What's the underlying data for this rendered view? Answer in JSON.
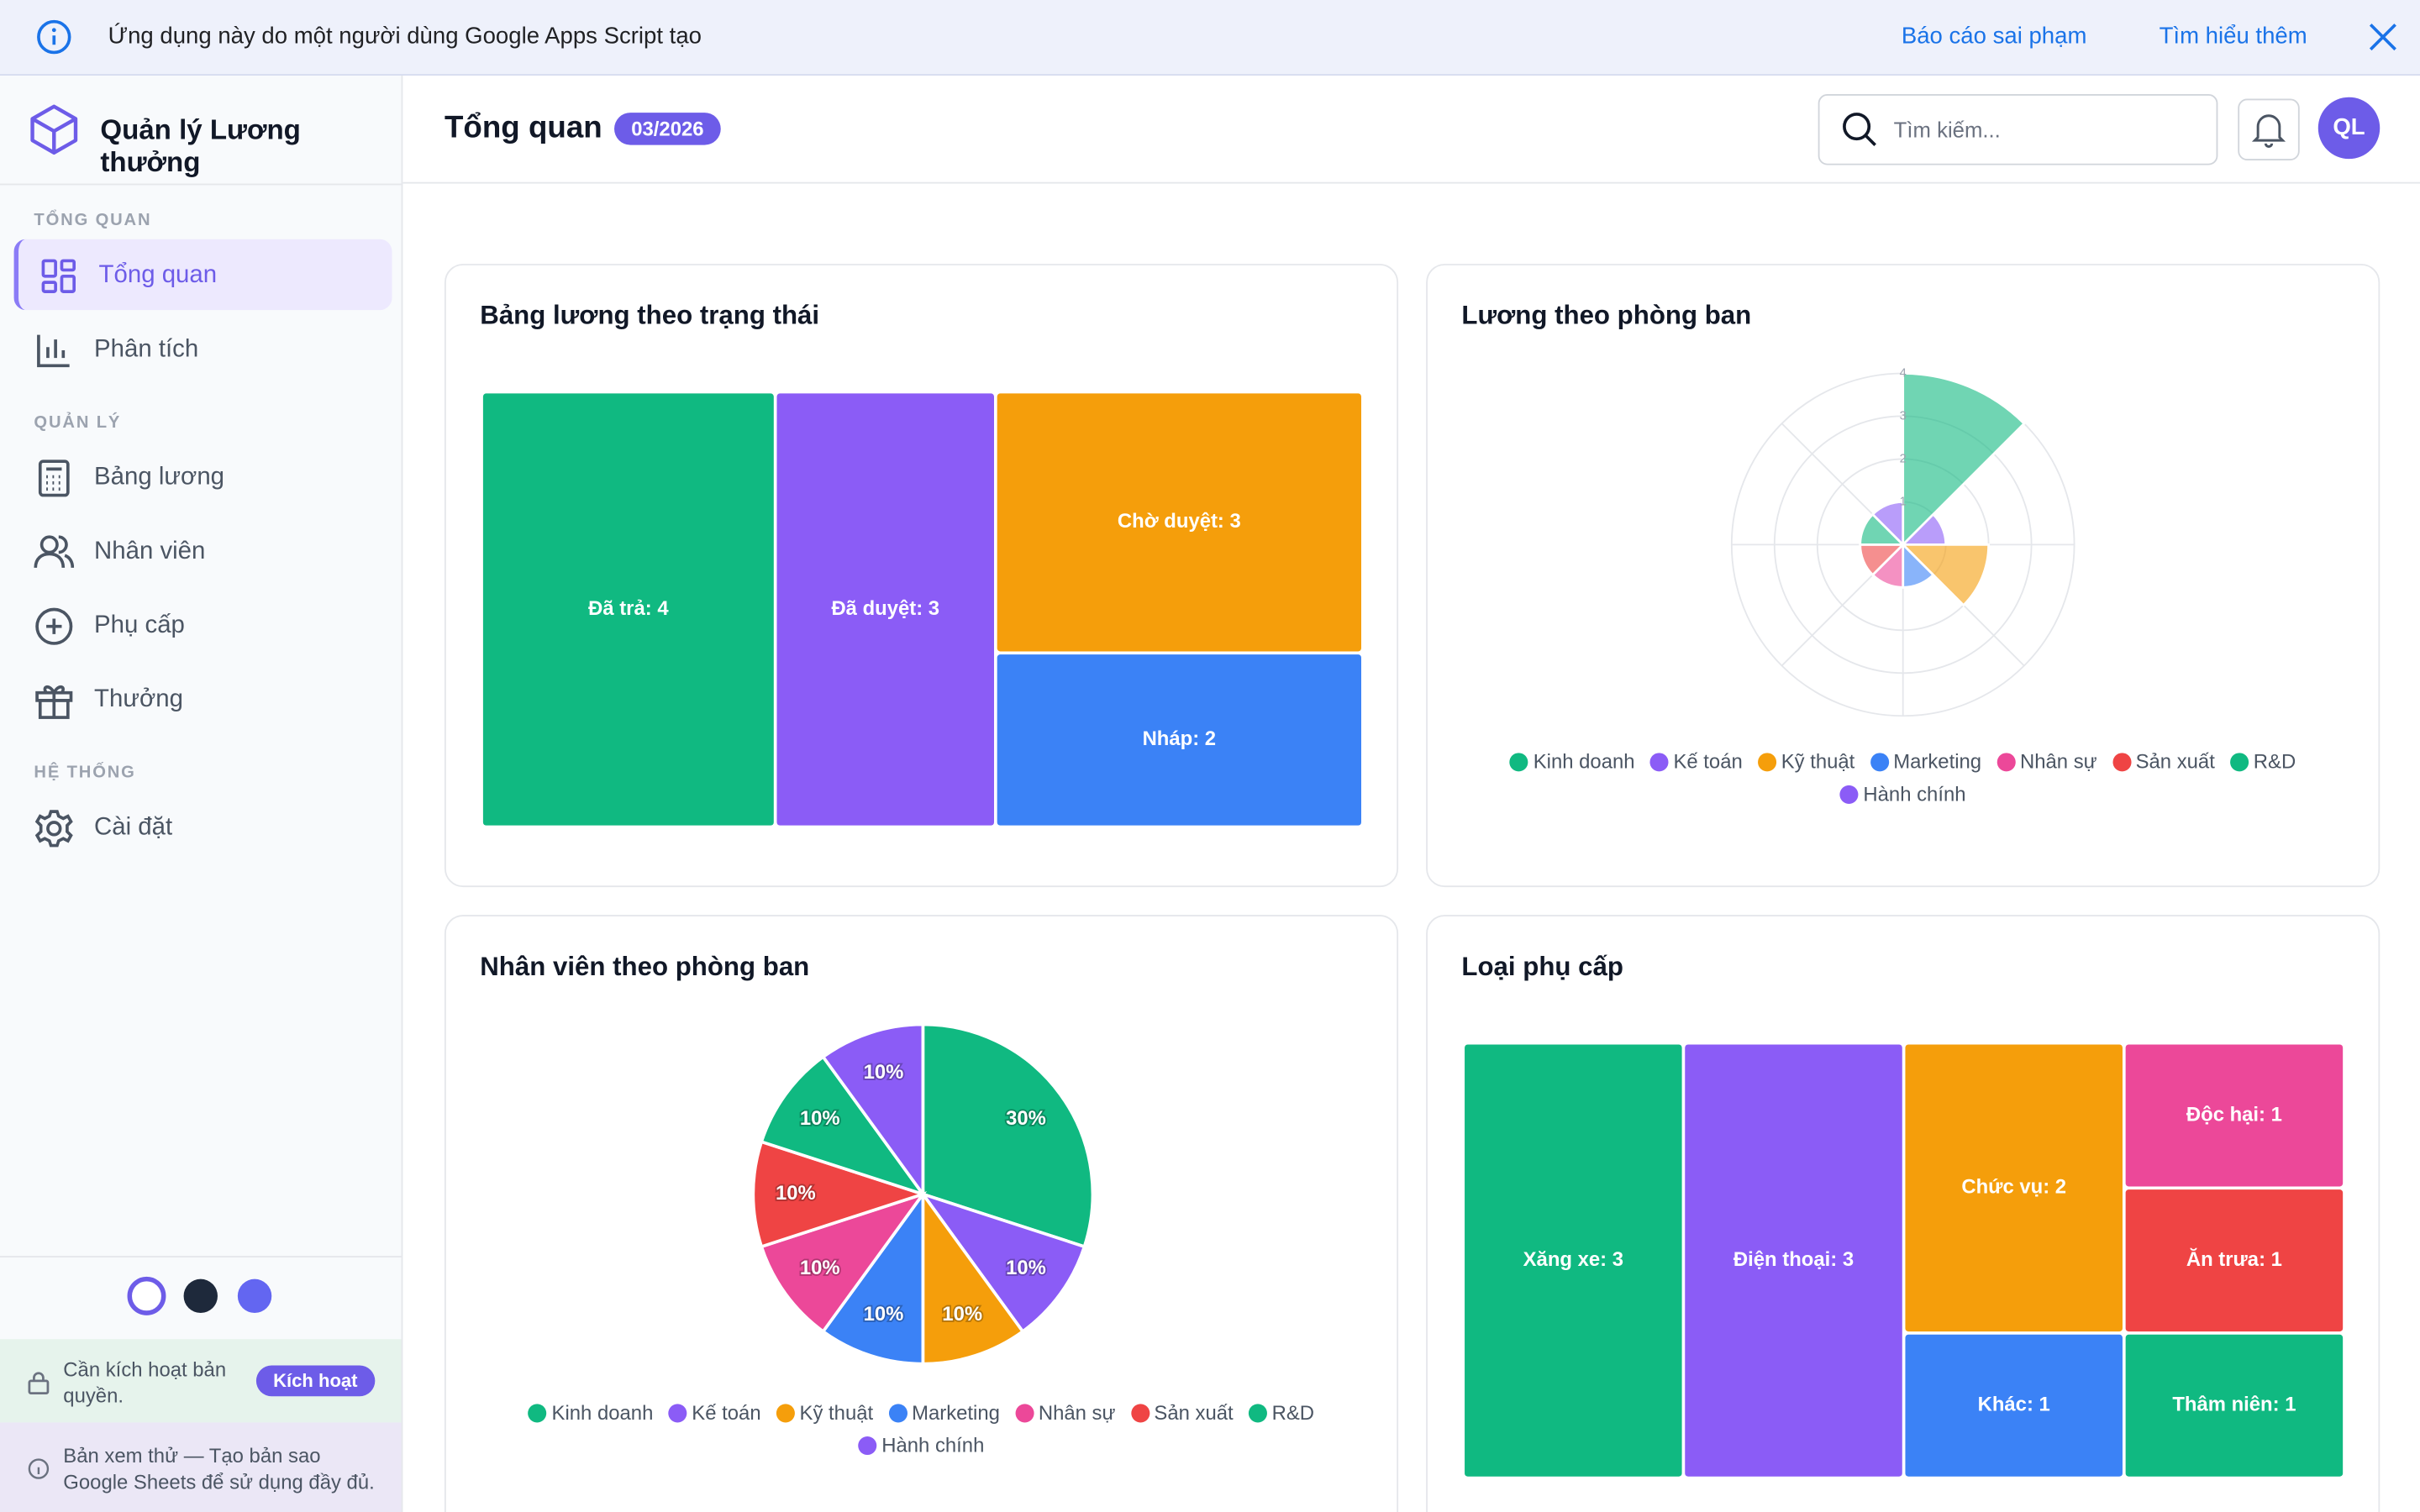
{
  "banner": {
    "text": "Ứng dụng này do một người dùng Google Apps Script tạo",
    "links": [
      "Báo cáo sai phạm",
      "Tìm hiểu thêm"
    ]
  },
  "sidebar": {
    "brand": "Quản lý Lương thưởng",
    "sections": [
      {
        "title": "TỔNG QUAN",
        "items": [
          "Tổng quan",
          "Phân tích"
        ]
      },
      {
        "title": "QUẢN LÝ",
        "items": [
          "Bảng lương",
          "Nhân viên",
          "Phụ cấp",
          "Thưởng"
        ]
      },
      {
        "title": "HỆ THỐNG",
        "items": [
          "Cài đặt"
        ]
      }
    ],
    "license": {
      "text": "Cần kích hoạt bản quyền.",
      "button": "Kích hoạt"
    },
    "trial": "Bản xem thử — Tạo bản sao Google Sheets để sử dụng đầy đủ."
  },
  "header": {
    "title": "Tổng quan",
    "period": "03/2026",
    "search_placeholder": "Tìm kiếm...",
    "avatar": "QL"
  },
  "charts": [
    {
      "type": "treemap",
      "title": "Bảng lương theo trạng thái",
      "labels": [
        "Đã trả: 4",
        "Đã duyệt: 3",
        "Chờ duyệt: 3",
        "Nháp: 2"
      ],
      "values": [
        4,
        3,
        3,
        2
      ],
      "colors": [
        "#10b981",
        "#8b5cf6",
        "#f59e0b",
        "#3b82f6"
      ]
    },
    {
      "type": "polar",
      "title": "Lương theo phòng ban",
      "categories": [
        "Kinh doanh",
        "Kế toán",
        "Kỹ thuật",
        "Marketing",
        "Nhân sự",
        "Sản xuất",
        "R&D",
        "Hành chính"
      ],
      "values": [
        4,
        1,
        2,
        1,
        1,
        1,
        1,
        1
      ],
      "colors": [
        "#10b981",
        "#8b5cf6",
        "#f59e0b",
        "#3b82f6",
        "#ec4899",
        "#ef4444",
        "#10b981",
        "#8b5cf6"
      ],
      "opacity": 0.6,
      "rlim": [
        0,
        4
      ],
      "rticks": [
        1,
        2,
        3,
        4
      ]
    },
    {
      "type": "pie",
      "title": "Nhân viên theo phòng ban",
      "categories": [
        "Kinh doanh",
        "Kế toán",
        "Kỹ thuật",
        "Marketing",
        "Nhân sự",
        "Sản xuất",
        "R&D",
        "Hành chính"
      ],
      "values": [
        30,
        10,
        10,
        10,
        10,
        10,
        10,
        10
      ],
      "value_labels": [
        "30%",
        "10%",
        "10%",
        "10%",
        "10%",
        "10%",
        "10%",
        "10%"
      ],
      "colors": [
        "#10b981",
        "#8b5cf6",
        "#f59e0b",
        "#3b82f6",
        "#ec4899",
        "#ef4444",
        "#10b981",
        "#8b5cf6"
      ]
    },
    {
      "type": "treemap",
      "title": "Loại phụ cấp",
      "labels": [
        "Xăng xe: 3",
        "Điện thoại: 3",
        "Chức vụ: 2",
        "Khác: 1",
        "Độc hại: 1",
        "Ăn trưa: 1",
        "Thâm niên: 1"
      ],
      "values": [
        3,
        3,
        2,
        1,
        1,
        1,
        1
      ],
      "colors": [
        "#10b981",
        "#8b5cf6",
        "#f59e0b",
        "#3b82f6",
        "#ec4899",
        "#ef4444",
        "#10b981"
      ]
    }
  ]
}
